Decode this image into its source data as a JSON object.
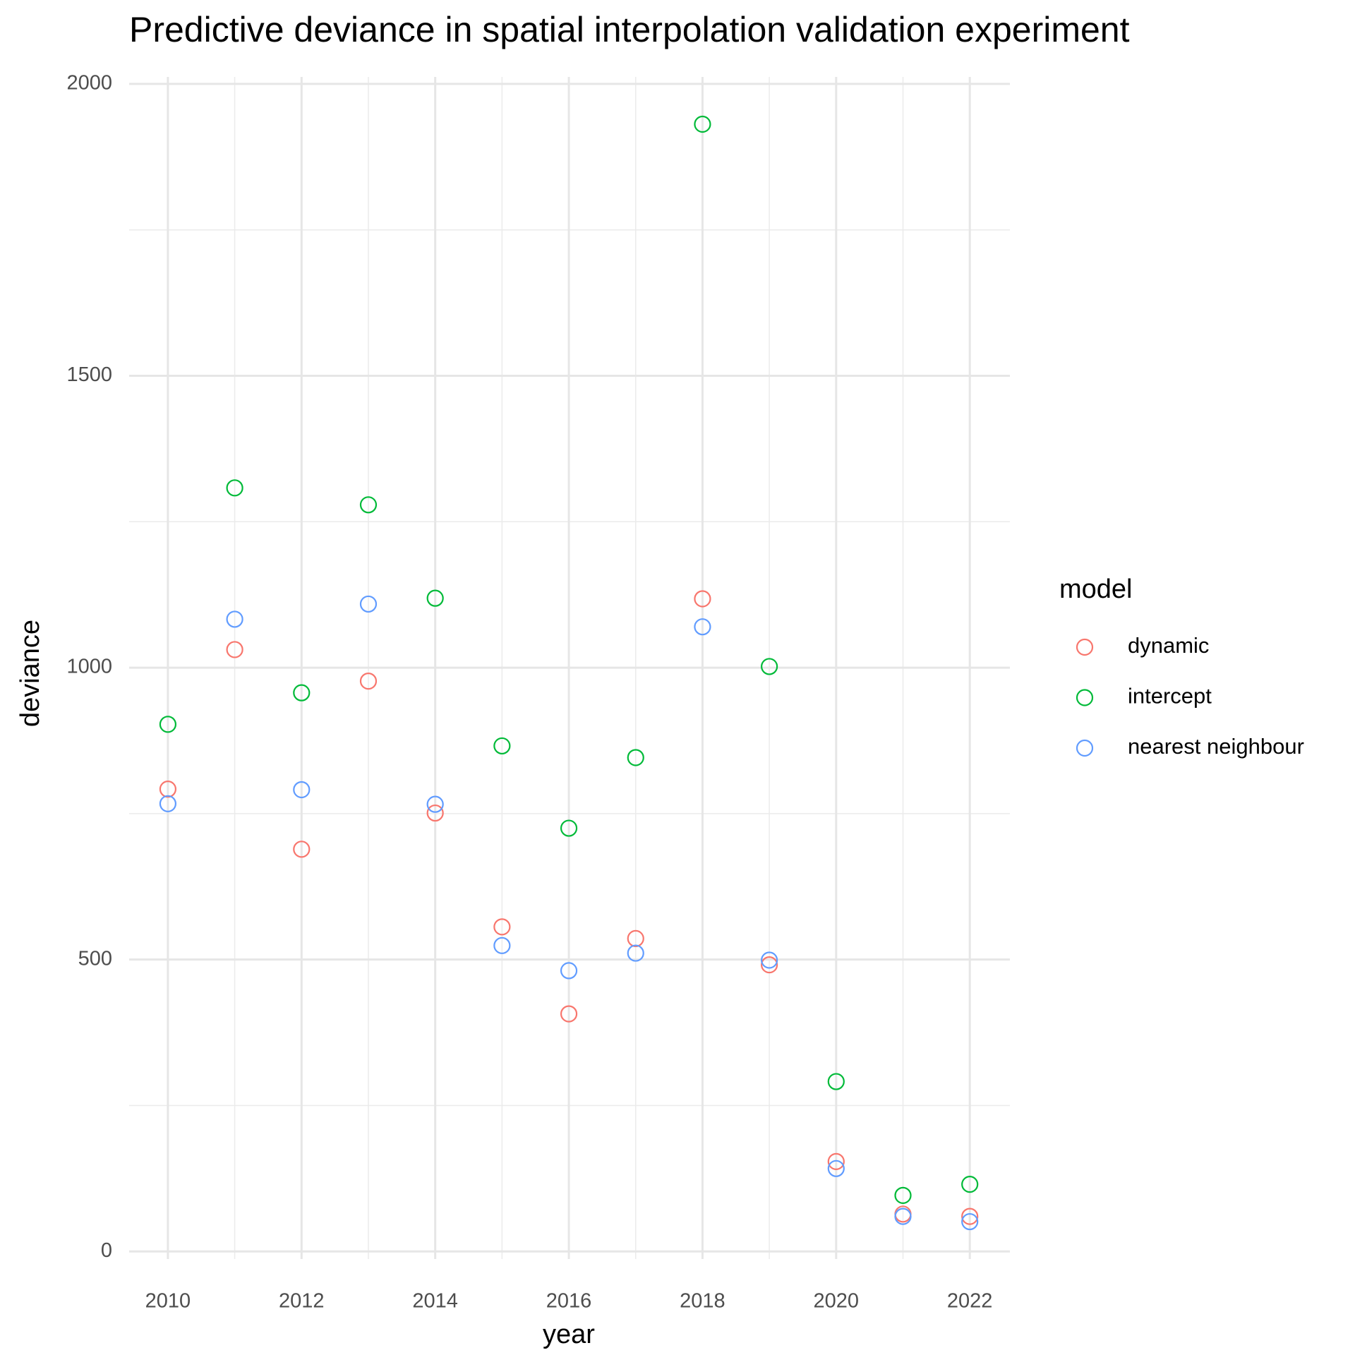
{
  "chart_data": {
    "type": "scatter",
    "title": "Predictive deviance in spatial interpolation validation experiment",
    "x_label": "year",
    "y_label": "deviance",
    "legend_title": "model",
    "x": [
      2010,
      2011,
      2012,
      2013,
      2014,
      2015,
      2016,
      2017,
      2018,
      2019,
      2020,
      2021,
      2022
    ],
    "series": [
      {
        "name": "dynamic",
        "color": "#f8766d",
        "values": [
          792,
          1031,
          689,
          977,
          751,
          556,
          407,
          536,
          1118,
          491,
          154,
          64,
          60
        ]
      },
      {
        "name": "intercept",
        "color": "#00ba38",
        "values": [
          903,
          1308,
          957,
          1279,
          1119,
          866,
          725,
          846,
          1931,
          1002,
          291,
          96,
          115
        ]
      },
      {
        "name": "nearest neighbour",
        "color": "#619cff",
        "values": [
          767,
          1083,
          791,
          1109,
          766,
          524,
          481,
          511,
          1070,
          499,
          142,
          60,
          51
        ]
      }
    ],
    "xlim": [
      2009.42,
      2022.6
    ],
    "ylim": [
      -13,
      2012
    ],
    "xticks": [
      2010,
      2012,
      2014,
      2016,
      2018,
      2020,
      2022
    ],
    "xminorticks": [
      2011,
      2013,
      2015,
      2017,
      2019,
      2021
    ],
    "yticks": [
      0,
      500,
      1000,
      1500,
      2000
    ],
    "yminorticks": [
      250,
      750,
      1250,
      1750
    ],
    "grid": true,
    "legend_position": "right"
  }
}
